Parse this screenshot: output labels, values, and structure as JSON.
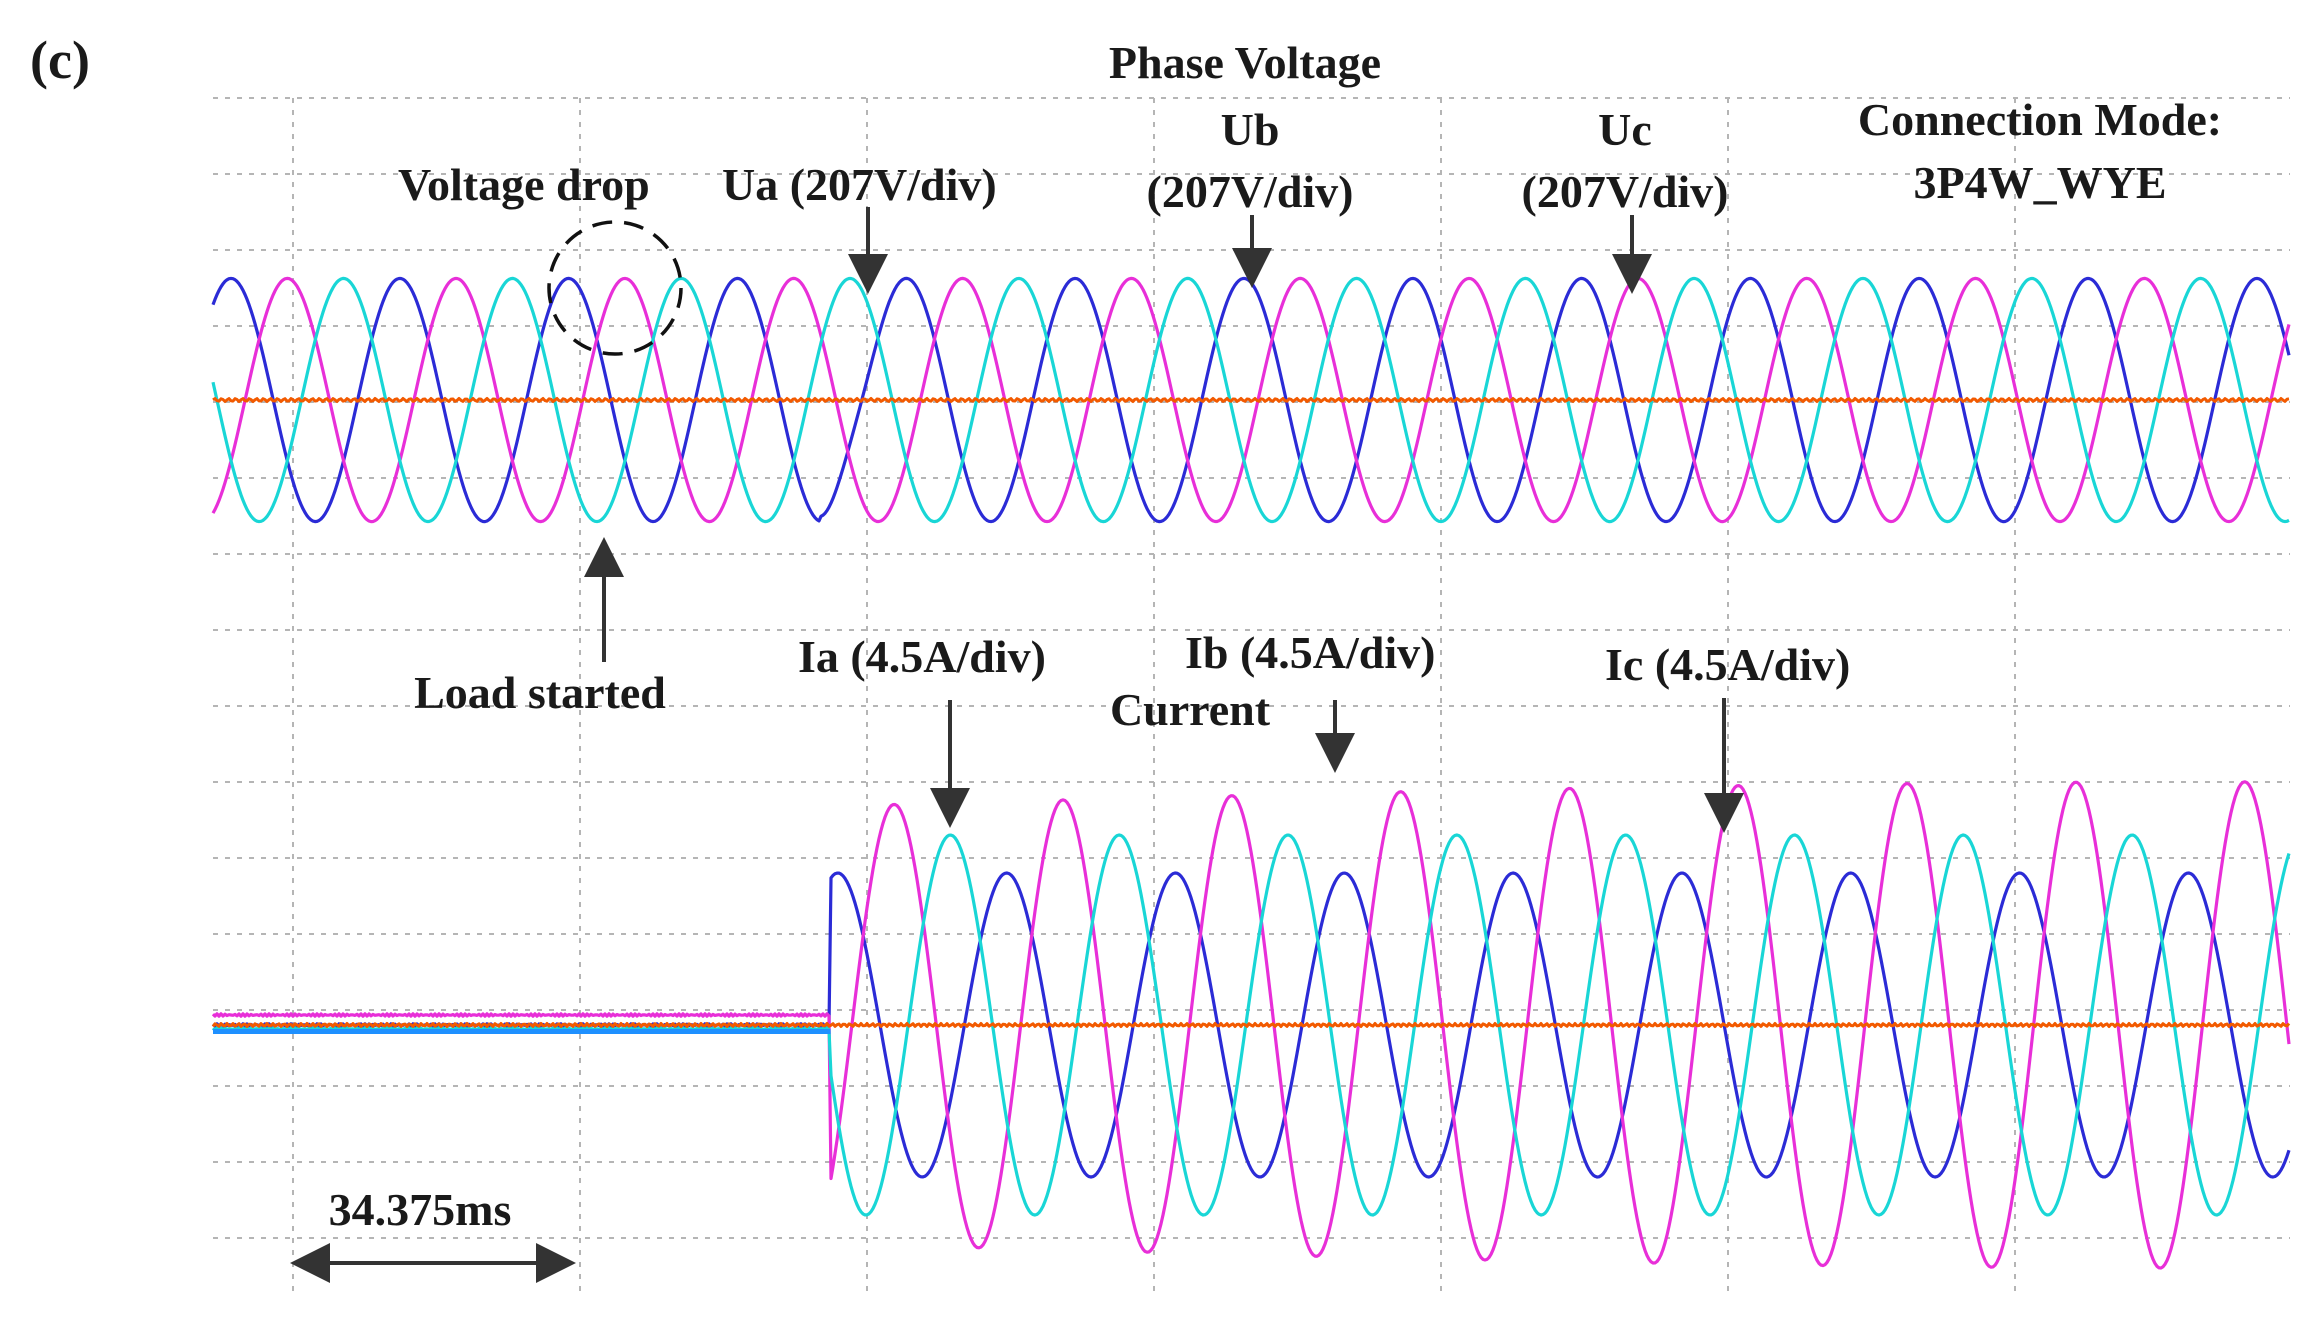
{
  "chart_data": [
    {
      "type": "line",
      "panel_label": "(c)",
      "title": "Phase Voltage",
      "annotations": {
        "connection_mode": [
          "Connection Mode:",
          "3P4W_WYE"
        ],
        "voltage_drop": "Voltage drop",
        "load_started": "Load started",
        "time_scale": "34.375ms"
      },
      "series": [
        {
          "name": "Ua (207V/div)",
          "color": "#2b2bd6",
          "amplitude_div": 1.6,
          "phase_deg": 0
        },
        {
          "name": "Ub",
          "name_line2": "(207V/div)",
          "color": "#e82fd8",
          "amplitude_div": 1.6,
          "phase_deg": -120
        },
        {
          "name": "Uc",
          "name_line2": "(207V/div)",
          "color": "#19d6d6",
          "amplitude_div": 1.6,
          "phase_deg": 120
        }
      ],
      "neutral_color": "#f25a00",
      "cycles_per_div": 1.7,
      "load_start_div": 1.42
    },
    {
      "type": "line",
      "title": "Current",
      "series": [
        {
          "name": "Ia (4.5A/div)",
          "color": "#2b2bd6",
          "amplitude_div": 2.0
        },
        {
          "name": "Ib (4.5A/div)",
          "color": "#e82fd8",
          "amplitude_div": 3.2
        },
        {
          "name": "Ic (4.5A/div)",
          "color": "#19d6d6",
          "amplitude_div": 2.5
        }
      ],
      "neutral_color": "#f25a00",
      "before_load_level_div": 0.05,
      "load_start_div": 1.42,
      "time_per_div_ms": 34.375
    }
  ]
}
